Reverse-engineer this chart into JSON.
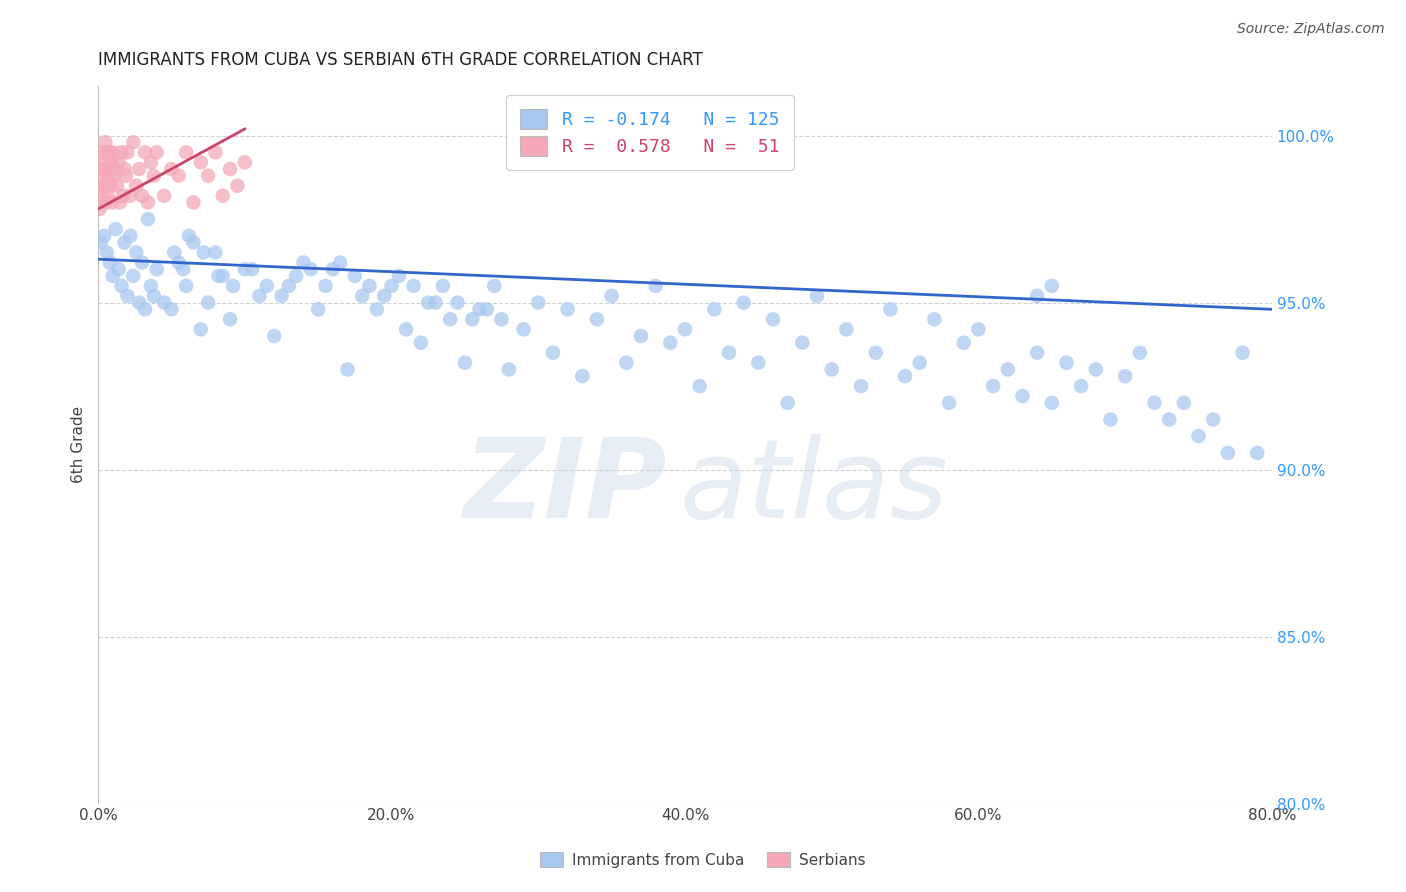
{
  "title": "IMMIGRANTS FROM CUBA VS SERBIAN 6TH GRADE CORRELATION CHART",
  "source": "Source: ZipAtlas.com",
  "ylabel": "6th Grade",
  "right_ytick_labels": [
    "80.0%",
    "85.0%",
    "90.0%",
    "95.0%",
    "100.0%"
  ],
  "right_ytick_vals": [
    80.0,
    85.0,
    90.0,
    95.0,
    100.0
  ],
  "blue_color": "#a8c8f0",
  "pink_color": "#f4a8b8",
  "blue_line_color": "#3366cc",
  "pink_line_color": "#cc4466",
  "blue_R": -0.174,
  "blue_N": 125,
  "pink_R": 0.578,
  "pink_N": 51,
  "blue_trend_x": [
    0.0,
    80.0
  ],
  "blue_trend_y": [
    96.3,
    94.8
  ],
  "pink_trend_x": [
    0.0,
    10.0
  ],
  "pink_trend_y": [
    97.8,
    100.2
  ],
  "xmin": 0.0,
  "xmax": 80.0,
  "ymin": 80.0,
  "ymax": 101.5,
  "background_color": "#ffffff",
  "grid_color": "#cccccc",
  "title_fontsize": 12,
  "right_tick_color": "#3399ff",
  "bottom_tick_labels": [
    "0.0%",
    "20.0%",
    "40.0%",
    "60.0%",
    "80.0%"
  ],
  "bottom_tick_vals": [
    0,
    20,
    40,
    60,
    80
  ],
  "blue_scatter_x": [
    0.2,
    0.4,
    0.6,
    0.8,
    1.0,
    1.2,
    1.4,
    1.6,
    1.8,
    2.0,
    2.2,
    2.4,
    2.6,
    2.8,
    3.0,
    3.2,
    3.4,
    3.6,
    3.8,
    4.0,
    4.5,
    5.0,
    5.5,
    6.0,
    6.5,
    7.0,
    7.5,
    8.0,
    8.5,
    9.0,
    10.0,
    11.0,
    12.0,
    13.0,
    14.0,
    15.0,
    16.0,
    17.0,
    18.0,
    19.0,
    20.0,
    21.0,
    22.0,
    23.0,
    24.0,
    25.0,
    26.0,
    27.0,
    28.0,
    29.0,
    30.0,
    31.0,
    32.0,
    33.0,
    34.0,
    35.0,
    36.0,
    37.0,
    38.0,
    39.0,
    40.0,
    41.0,
    42.0,
    43.0,
    44.0,
    45.0,
    46.0,
    47.0,
    48.0,
    49.0,
    50.0,
    51.0,
    52.0,
    53.0,
    54.0,
    55.0,
    56.0,
    57.0,
    58.0,
    59.0,
    60.0,
    61.0,
    62.0,
    63.0,
    64.0,
    65.0,
    66.0,
    67.0,
    68.0,
    69.0,
    70.0,
    71.0,
    72.0,
    73.0,
    74.0,
    75.0,
    76.0,
    77.0,
    78.0,
    79.0,
    5.2,
    5.8,
    6.2,
    7.2,
    8.2,
    9.2,
    10.5,
    11.5,
    12.5,
    13.5,
    14.5,
    15.5,
    16.5,
    17.5,
    18.5,
    19.5,
    20.5,
    21.5,
    22.5,
    23.5,
    24.5,
    25.5,
    26.5,
    27.5,
    64.0,
    65.0
  ],
  "blue_scatter_y": [
    96.8,
    97.0,
    96.5,
    96.2,
    95.8,
    97.2,
    96.0,
    95.5,
    96.8,
    95.2,
    97.0,
    95.8,
    96.5,
    95.0,
    96.2,
    94.8,
    97.5,
    95.5,
    95.2,
    96.0,
    95.0,
    94.8,
    96.2,
    95.5,
    96.8,
    94.2,
    95.0,
    96.5,
    95.8,
    94.5,
    96.0,
    95.2,
    94.0,
    95.5,
    96.2,
    94.8,
    96.0,
    93.0,
    95.2,
    94.8,
    95.5,
    94.2,
    93.8,
    95.0,
    94.5,
    93.2,
    94.8,
    95.5,
    93.0,
    94.2,
    95.0,
    93.5,
    94.8,
    92.8,
    94.5,
    95.2,
    93.2,
    94.0,
    95.5,
    93.8,
    94.2,
    92.5,
    94.8,
    93.5,
    95.0,
    93.2,
    94.5,
    92.0,
    93.8,
    95.2,
    93.0,
    94.2,
    92.5,
    93.5,
    94.8,
    92.8,
    93.2,
    94.5,
    92.0,
    93.8,
    94.2,
    92.5,
    93.0,
    92.2,
    93.5,
    92.0,
    93.2,
    92.5,
    93.0,
    91.5,
    92.8,
    93.5,
    92.0,
    91.5,
    92.0,
    91.0,
    91.5,
    90.5,
    93.5,
    90.5,
    96.5,
    96.0,
    97.0,
    96.5,
    95.8,
    95.5,
    96.0,
    95.5,
    95.2,
    95.8,
    96.0,
    95.5,
    96.2,
    95.8,
    95.5,
    95.2,
    95.8,
    95.5,
    95.0,
    95.5,
    95.0,
    94.5,
    94.8,
    94.5,
    95.2,
    95.5
  ],
  "pink_scatter_x": [
    0.1,
    0.15,
    0.2,
    0.25,
    0.3,
    0.35,
    0.4,
    0.45,
    0.5,
    0.55,
    0.6,
    0.65,
    0.7,
    0.75,
    0.8,
    0.85,
    0.9,
    0.95,
    1.0,
    1.1,
    1.2,
    1.3,
    1.4,
    1.5,
    1.6,
    1.7,
    1.8,
    1.9,
    2.0,
    2.2,
    2.4,
    2.6,
    2.8,
    3.0,
    3.2,
    3.4,
    3.6,
    3.8,
    4.0,
    4.5,
    5.0,
    5.5,
    6.0,
    6.5,
    7.0,
    7.5,
    8.0,
    8.5,
    9.0,
    9.5,
    10.0
  ],
  "pink_scatter_y": [
    97.8,
    98.5,
    99.0,
    98.2,
    99.5,
    98.8,
    99.2,
    98.5,
    99.8,
    98.0,
    99.5,
    98.2,
    99.0,
    98.8,
    99.5,
    98.5,
    99.2,
    98.0,
    99.5,
    98.8,
    99.0,
    98.5,
    99.2,
    98.0,
    99.5,
    98.2,
    99.0,
    98.8,
    99.5,
    98.2,
    99.8,
    98.5,
    99.0,
    98.2,
    99.5,
    98.0,
    99.2,
    98.8,
    99.5,
    98.2,
    99.0,
    98.8,
    99.5,
    98.0,
    99.2,
    98.8,
    99.5,
    98.2,
    99.0,
    98.5,
    99.2
  ]
}
